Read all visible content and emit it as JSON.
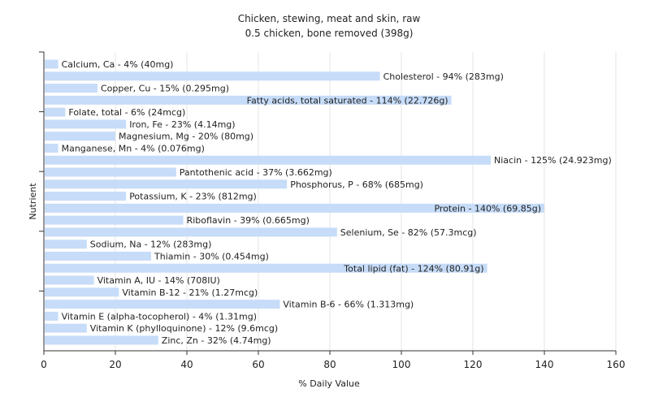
{
  "chart_data": {
    "type": "bar",
    "orientation": "horizontal",
    "title": "Chicken, stewing, meat and skin, raw",
    "subtitle": "0.5 chicken, bone removed (398g)",
    "xlabel": "% Daily Value",
    "ylabel": "Nutrient",
    "xlim": [
      0,
      160
    ],
    "xticks": [
      0,
      20,
      40,
      60,
      80,
      100,
      120,
      140,
      160
    ],
    "grid": true,
    "bar_color": "#c6dcf8",
    "categories": [
      "Calcium, Ca",
      "Cholesterol",
      "Copper, Cu",
      "Fatty acids, total saturated",
      "Folate, total",
      "Iron, Fe",
      "Magnesium, Mg",
      "Manganese, Mn",
      "Niacin",
      "Pantothenic acid",
      "Phosphorus, P",
      "Potassium, K",
      "Protein",
      "Riboflavin",
      "Selenium, Se",
      "Sodium, Na",
      "Thiamin",
      "Total lipid (fat)",
      "Vitamin A, IU",
      "Vitamin B-12",
      "Vitamin B-6",
      "Vitamin E (alpha-tocopherol)",
      "Vitamin K (phylloquinone)",
      "Zinc, Zn"
    ],
    "values": [
      4,
      94,
      15,
      114,
      6,
      23,
      20,
      4,
      125,
      37,
      68,
      23,
      140,
      39,
      82,
      12,
      30,
      124,
      14,
      21,
      66,
      4,
      12,
      32
    ],
    "labels": [
      "Calcium, Ca - 4% (40mg)",
      "Cholesterol - 94% (283mg)",
      "Copper, Cu - 15% (0.295mg)",
      "Fatty acids, total saturated - 114% (22.726g)",
      "Folate, total - 6% (24mcg)",
      "Iron, Fe - 23% (4.14mg)",
      "Magnesium, Mg - 20% (80mg)",
      "Manganese, Mn - 4% (0.076mg)",
      "Niacin - 125% (24.923mg)",
      "Pantothenic acid - 37% (3.662mg)",
      "Phosphorus, P - 68% (685mg)",
      "Potassium, K - 23% (812mg)",
      "Protein - 140% (69.85g)",
      "Riboflavin - 39% (0.665mg)",
      "Selenium, Se - 82% (57.3mcg)",
      "Sodium, Na - 12% (283mg)",
      "Thiamin - 30% (0.454mg)",
      "Total lipid (fat) - 124% (80.91g)",
      "Vitamin A, IU - 14% (708IU)",
      "Vitamin B-12 - 21% (1.27mcg)",
      "Vitamin B-6 - 66% (1.313mg)",
      "Vitamin E (alpha-tocopherol) - 4% (1.31mg)",
      "Vitamin K (phylloquinone) - 12% (9.6mcg)",
      "Zinc, Zn - 32% (4.74mg)"
    ]
  }
}
